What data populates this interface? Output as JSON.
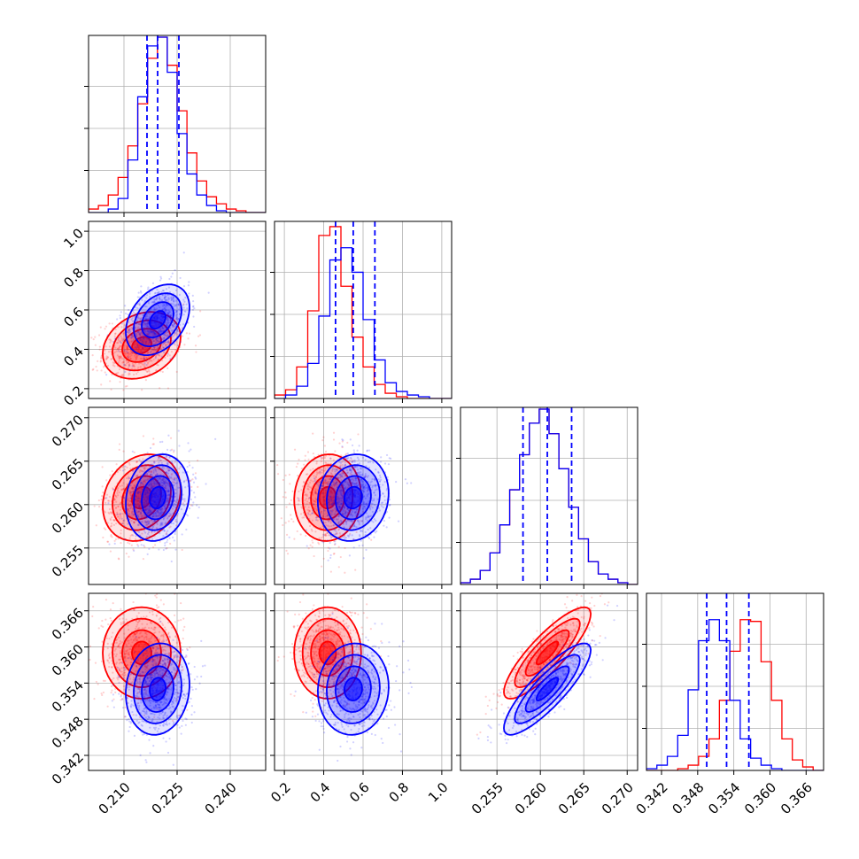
{
  "chart_data": {
    "type": "corner",
    "grid": true,
    "colors": {
      "model_a": "#ff0000",
      "model_b": "#0000ff",
      "quantile_lines": "#0000ff"
    },
    "parameters": [
      {
        "id": "p0",
        "range": [
          0.2,
          0.25
        ],
        "ticks": [
          "0.210",
          "0.225",
          "0.240"
        ]
      },
      {
        "id": "p1",
        "range": [
          0.15,
          1.05
        ],
        "ticks": [
          "0.2",
          "0.4",
          "0.6",
          "0.8",
          "1.0"
        ]
      },
      {
        "id": "p2",
        "range": [
          0.2508,
          0.2712
        ],
        "ticks": [
          "0.255",
          "0.260",
          "0.265",
          "0.270"
        ]
      },
      {
        "id": "p3",
        "range": [
          0.3395,
          0.3689
        ],
        "ticks": [
          "0.342",
          "0.348",
          "0.354",
          "0.360",
          "0.366"
        ]
      }
    ],
    "series": [
      {
        "color": "#ff0000",
        "mean": [
          0.215,
          0.42,
          0.2608,
          0.359
        ],
        "std": [
          0.0055,
          0.085,
          0.0025,
          0.0038
        ],
        "corr": [
          [
            0,
            1,
            0.25
          ],
          [
            0,
            2,
            0.2
          ],
          [
            0,
            3,
            0.0
          ],
          [
            1,
            2,
            0.05
          ],
          [
            1,
            3,
            0.0
          ],
          [
            2,
            3,
            0.85
          ]
        ],
        "hist": [
          [
            0.02,
            0.04,
            0.1,
            0.2,
            0.38,
            0.62,
            0.88,
            1.0,
            0.84,
            0.58,
            0.34,
            0.18,
            0.09,
            0.05,
            0.02,
            0.01,
            0.0,
            0.0
          ],
          [
            0.02,
            0.05,
            0.18,
            0.5,
            0.93,
            0.98,
            0.64,
            0.35,
            0.18,
            0.08,
            0.03,
            0.01,
            0.0,
            0.0,
            0.0,
            0.0
          ],
          [
            0.01,
            0.03,
            0.08,
            0.18,
            0.34,
            0.54,
            0.74,
            0.92,
            1.0,
            0.86,
            0.66,
            0.44,
            0.26,
            0.13,
            0.06,
            0.03,
            0.01,
            0.0
          ],
          [
            0.0,
            0.0,
            0.0,
            0.01,
            0.03,
            0.08,
            0.18,
            0.4,
            0.68,
            0.86,
            0.85,
            0.62,
            0.4,
            0.18,
            0.06,
            0.02,
            0.0
          ]
        ]
      },
      {
        "color": "#0000ff",
        "mean": [
          0.2195,
          0.55,
          0.2608,
          0.353
        ],
        "std": [
          0.0045,
          0.09,
          0.0025,
          0.0038
        ],
        "corr": [
          [
            0,
            1,
            0.35
          ],
          [
            0,
            2,
            0.15
          ],
          [
            0,
            3,
            0.1
          ],
          [
            1,
            2,
            0.1
          ],
          [
            1,
            3,
            0.05
          ],
          [
            2,
            3,
            0.85
          ]
        ],
        "hist": [
          [
            0.0,
            0.0,
            0.02,
            0.08,
            0.3,
            0.66,
            0.95,
            1.0,
            0.8,
            0.45,
            0.22,
            0.1,
            0.04,
            0.01,
            0.0,
            0.0,
            0.0,
            0.0
          ],
          [
            0.0,
            0.02,
            0.07,
            0.2,
            0.47,
            0.79,
            0.86,
            0.72,
            0.45,
            0.22,
            0.09,
            0.04,
            0.02,
            0.01,
            0.0,
            0.0
          ],
          [
            0.01,
            0.03,
            0.08,
            0.18,
            0.34,
            0.54,
            0.74,
            0.92,
            1.0,
            0.86,
            0.66,
            0.44,
            0.26,
            0.13,
            0.06,
            0.03,
            0.01,
            0.0
          ],
          [
            0.01,
            0.03,
            0.08,
            0.2,
            0.46,
            0.74,
            0.86,
            0.74,
            0.4,
            0.18,
            0.07,
            0.03,
            0.01,
            0.0,
            0.0,
            0.0,
            0.0
          ]
        ]
      }
    ],
    "quantiles": [
      [
        0.2165,
        0.2195,
        0.2255
      ],
      [
        0.46,
        0.55,
        0.66
      ],
      [
        0.258,
        0.2608,
        0.2636
      ],
      [
        0.3495,
        0.3528,
        0.3565
      ]
    ]
  }
}
